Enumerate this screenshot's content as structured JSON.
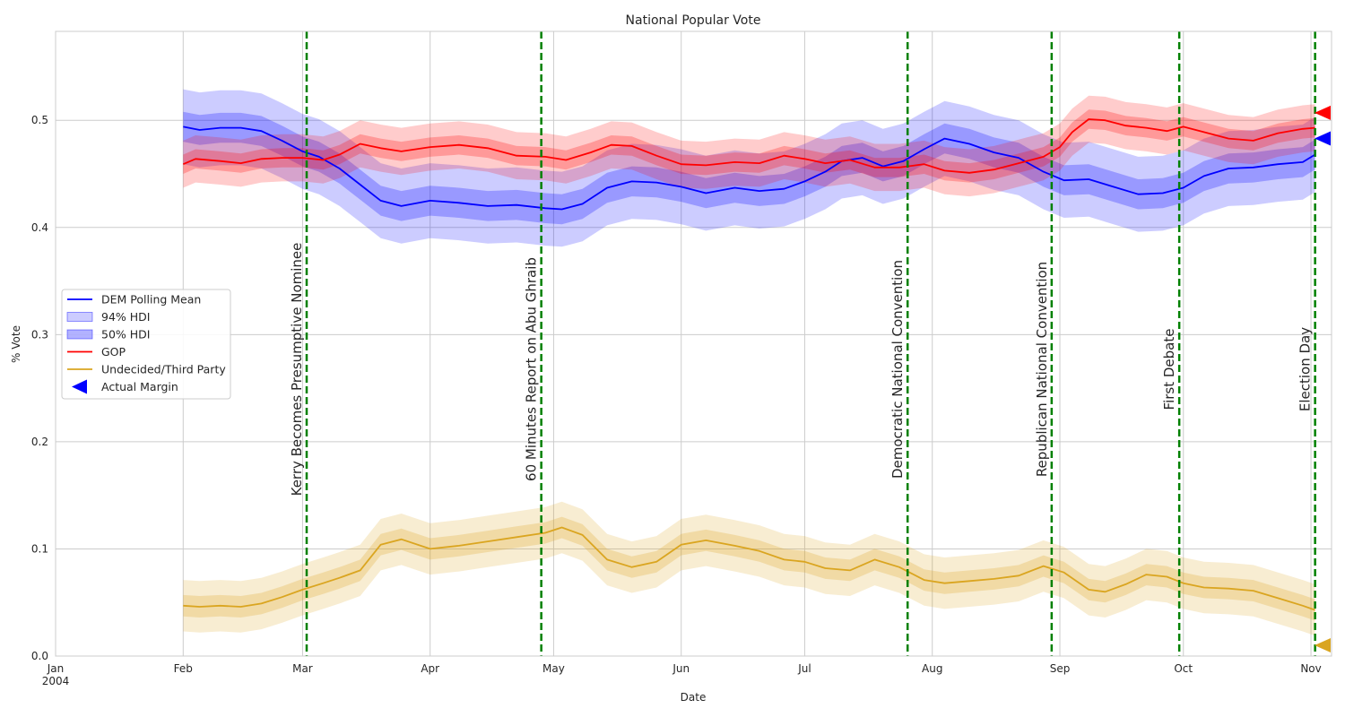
{
  "chart_data": {
    "type": "line",
    "title": "National Popular Vote",
    "xlabel": "Date",
    "ylabel": "% Vote",
    "xlim": [
      "2004-01-01",
      "2004-11-06"
    ],
    "ylim": [
      0,
      0.583
    ],
    "grid": true,
    "legend_position": "left-center",
    "x_ticks": [
      {
        "date": "2004-01-01",
        "label": "Jan",
        "sublabel": "2004"
      },
      {
        "date": "2004-02-01",
        "label": "Feb"
      },
      {
        "date": "2004-03-01",
        "label": "Mar"
      },
      {
        "date": "2004-04-01",
        "label": "Apr"
      },
      {
        "date": "2004-05-01",
        "label": "May"
      },
      {
        "date": "2004-06-01",
        "label": "Jun"
      },
      {
        "date": "2004-07-01",
        "label": "Jul"
      },
      {
        "date": "2004-08-01",
        "label": "Aug"
      },
      {
        "date": "2004-09-01",
        "label": "Sep"
      },
      {
        "date": "2004-10-01",
        "label": "Oct"
      },
      {
        "date": "2004-11-01",
        "label": "Nov"
      }
    ],
    "y_ticks": [
      {
        "value": 0.0,
        "label": "0.0"
      },
      {
        "value": 0.1,
        "label": "0.1"
      },
      {
        "value": 0.2,
        "label": "0.2"
      },
      {
        "value": 0.3,
        "label": "0.3"
      },
      {
        "value": 0.4,
        "label": "0.4"
      },
      {
        "value": 0.5,
        "label": "0.5"
      }
    ],
    "series": [
      {
        "name": "DEM Polling Mean",
        "color": "#0000ff",
        "hdi94_width": 0.035,
        "hdi50_width": 0.014,
        "points": [
          [
            "2004-02-01",
            0.494
          ],
          [
            "2004-02-05",
            0.491
          ],
          [
            "2004-02-10",
            0.493
          ],
          [
            "2004-02-15",
            0.493
          ],
          [
            "2004-02-20",
            0.49
          ],
          [
            "2004-02-25",
            0.481
          ],
          [
            "2004-03-01",
            0.471
          ],
          [
            "2004-03-05",
            0.466
          ],
          [
            "2004-03-10",
            0.455
          ],
          [
            "2004-03-15",
            0.44
          ],
          [
            "2004-03-20",
            0.425
          ],
          [
            "2004-03-25",
            0.42
          ],
          [
            "2004-04-01",
            0.425
          ],
          [
            "2004-04-08",
            0.423
          ],
          [
            "2004-04-15",
            0.42
          ],
          [
            "2004-04-22",
            0.421
          ],
          [
            "2004-04-29",
            0.418
          ],
          [
            "2004-05-03",
            0.417
          ],
          [
            "2004-05-08",
            0.422
          ],
          [
            "2004-05-14",
            0.437
          ],
          [
            "2004-05-20",
            0.443
          ],
          [
            "2004-05-26",
            0.442
          ],
          [
            "2004-06-01",
            0.438
          ],
          [
            "2004-06-07",
            0.432
          ],
          [
            "2004-06-14",
            0.437
          ],
          [
            "2004-06-20",
            0.434
          ],
          [
            "2004-06-26",
            0.436
          ],
          [
            "2004-07-01",
            0.443
          ],
          [
            "2004-07-06",
            0.452
          ],
          [
            "2004-07-10",
            0.462
          ],
          [
            "2004-07-15",
            0.465
          ],
          [
            "2004-07-20",
            0.457
          ],
          [
            "2004-07-25",
            0.462
          ],
          [
            "2004-07-30",
            0.473
          ],
          [
            "2004-08-04",
            0.483
          ],
          [
            "2004-08-10",
            0.478
          ],
          [
            "2004-08-16",
            0.47
          ],
          [
            "2004-08-22",
            0.465
          ],
          [
            "2004-08-28",
            0.452
          ],
          [
            "2004-09-02",
            0.444
          ],
          [
            "2004-09-08",
            0.445
          ],
          [
            "2004-09-14",
            0.438
          ],
          [
            "2004-09-20",
            0.431
          ],
          [
            "2004-09-26",
            0.432
          ],
          [
            "2004-10-01",
            0.437
          ],
          [
            "2004-10-06",
            0.448
          ],
          [
            "2004-10-12",
            0.455
          ],
          [
            "2004-10-18",
            0.456
          ],
          [
            "2004-10-24",
            0.459
          ],
          [
            "2004-10-30",
            0.461
          ],
          [
            "2004-11-02",
            0.468
          ]
        ]
      },
      {
        "name": "GOP",
        "color": "#ff0000",
        "hdi94_width": 0.022,
        "hdi50_width": 0.009,
        "points": [
          [
            "2004-02-01",
            0.459
          ],
          [
            "2004-02-04",
            0.464
          ],
          [
            "2004-02-10",
            0.462
          ],
          [
            "2004-02-15",
            0.46
          ],
          [
            "2004-02-20",
            0.464
          ],
          [
            "2004-02-25",
            0.465
          ],
          [
            "2004-03-01",
            0.465
          ],
          [
            "2004-03-06",
            0.463
          ],
          [
            "2004-03-10",
            0.468
          ],
          [
            "2004-03-15",
            0.478
          ],
          [
            "2004-03-20",
            0.474
          ],
          [
            "2004-03-25",
            0.471
          ],
          [
            "2004-04-01",
            0.475
          ],
          [
            "2004-04-08",
            0.477
          ],
          [
            "2004-04-15",
            0.474
          ],
          [
            "2004-04-22",
            0.467
          ],
          [
            "2004-04-29",
            0.466
          ],
          [
            "2004-05-04",
            0.463
          ],
          [
            "2004-05-10",
            0.47
          ],
          [
            "2004-05-15",
            0.477
          ],
          [
            "2004-05-20",
            0.476
          ],
          [
            "2004-05-26",
            0.467
          ],
          [
            "2004-06-01",
            0.459
          ],
          [
            "2004-06-07",
            0.458
          ],
          [
            "2004-06-14",
            0.461
          ],
          [
            "2004-06-20",
            0.46
          ],
          [
            "2004-06-26",
            0.467
          ],
          [
            "2004-07-01",
            0.464
          ],
          [
            "2004-07-06",
            0.46
          ],
          [
            "2004-07-12",
            0.463
          ],
          [
            "2004-07-18",
            0.456
          ],
          [
            "2004-07-24",
            0.456
          ],
          [
            "2004-07-30",
            0.459
          ],
          [
            "2004-08-04",
            0.453
          ],
          [
            "2004-08-10",
            0.451
          ],
          [
            "2004-08-16",
            0.454
          ],
          [
            "2004-08-22",
            0.46
          ],
          [
            "2004-08-28",
            0.466
          ],
          [
            "2004-09-01",
            0.475
          ],
          [
            "2004-09-04",
            0.489
          ],
          [
            "2004-09-08",
            0.501
          ],
          [
            "2004-09-12",
            0.5
          ],
          [
            "2004-09-17",
            0.495
          ],
          [
            "2004-09-22",
            0.493
          ],
          [
            "2004-09-27",
            0.49
          ],
          [
            "2004-10-01",
            0.494
          ],
          [
            "2004-10-06",
            0.489
          ],
          [
            "2004-10-12",
            0.483
          ],
          [
            "2004-10-18",
            0.481
          ],
          [
            "2004-10-24",
            0.488
          ],
          [
            "2004-10-30",
            0.492
          ],
          [
            "2004-11-02",
            0.493
          ]
        ]
      },
      {
        "name": "Undecided/Third Party",
        "color": "#daa520",
        "hdi94_width": 0.024,
        "hdi50_width": 0.01,
        "points": [
          [
            "2004-02-01",
            0.047
          ],
          [
            "2004-02-05",
            0.046
          ],
          [
            "2004-02-10",
            0.047
          ],
          [
            "2004-02-15",
            0.046
          ],
          [
            "2004-02-20",
            0.049
          ],
          [
            "2004-02-25",
            0.055
          ],
          [
            "2004-03-01",
            0.062
          ],
          [
            "2004-03-06",
            0.068
          ],
          [
            "2004-03-10",
            0.073
          ],
          [
            "2004-03-15",
            0.08
          ],
          [
            "2004-03-20",
            0.104
          ],
          [
            "2004-03-25",
            0.109
          ],
          [
            "2004-04-01",
            0.1
          ],
          [
            "2004-04-08",
            0.103
          ],
          [
            "2004-04-15",
            0.107
          ],
          [
            "2004-04-22",
            0.111
          ],
          [
            "2004-04-29",
            0.115
          ],
          [
            "2004-05-03",
            0.12
          ],
          [
            "2004-05-08",
            0.113
          ],
          [
            "2004-05-14",
            0.09
          ],
          [
            "2004-05-20",
            0.083
          ],
          [
            "2004-05-26",
            0.088
          ],
          [
            "2004-06-01",
            0.104
          ],
          [
            "2004-06-07",
            0.108
          ],
          [
            "2004-06-14",
            0.103
          ],
          [
            "2004-06-20",
            0.098
          ],
          [
            "2004-06-26",
            0.09
          ],
          [
            "2004-07-01",
            0.088
          ],
          [
            "2004-07-06",
            0.082
          ],
          [
            "2004-07-12",
            0.08
          ],
          [
            "2004-07-18",
            0.09
          ],
          [
            "2004-07-24",
            0.083
          ],
          [
            "2004-07-30",
            0.071
          ],
          [
            "2004-08-04",
            0.068
          ],
          [
            "2004-08-10",
            0.07
          ],
          [
            "2004-08-16",
            0.072
          ],
          [
            "2004-08-22",
            0.075
          ],
          [
            "2004-08-28",
            0.084
          ],
          [
            "2004-09-02",
            0.078
          ],
          [
            "2004-09-08",
            0.062
          ],
          [
            "2004-09-12",
            0.06
          ],
          [
            "2004-09-17",
            0.067
          ],
          [
            "2004-09-22",
            0.076
          ],
          [
            "2004-09-27",
            0.074
          ],
          [
            "2004-10-01",
            0.068
          ],
          [
            "2004-10-06",
            0.064
          ],
          [
            "2004-10-12",
            0.063
          ],
          [
            "2004-10-18",
            0.061
          ],
          [
            "2004-10-24",
            0.054
          ],
          [
            "2004-10-30",
            0.047
          ],
          [
            "2004-11-02",
            0.043
          ]
        ]
      }
    ],
    "events": [
      {
        "date": "2004-03-02",
        "label": "Kerry Becomes Presumptive Nominee"
      },
      {
        "date": "2004-04-28",
        "label": "60 Minutes Report on Abu Ghraib"
      },
      {
        "date": "2004-07-26",
        "label": "Democratic National Convention"
      },
      {
        "date": "2004-08-30",
        "label": "Republican National Convention"
      },
      {
        "date": "2004-09-30",
        "label": "First Debate"
      },
      {
        "date": "2004-11-02",
        "label": "Election Day"
      }
    ],
    "event_color": "#008000",
    "actual_results": [
      {
        "party": "GOP",
        "value": 0.507,
        "color": "#ff0000"
      },
      {
        "party": "DEM",
        "value": 0.483,
        "color": "#0000ff"
      },
      {
        "party": "Undecided/Third Party",
        "value": 0.01,
        "color": "#daa520"
      }
    ],
    "legend": [
      {
        "label": "DEM Polling Mean",
        "kind": "line",
        "color": "#0000ff"
      },
      {
        "label": "94% HDI",
        "kind": "patch",
        "color": "#0000ff",
        "opacity": 0.2
      },
      {
        "label": "50% HDI",
        "kind": "patch",
        "color": "#0000ff",
        "opacity": 0.3
      },
      {
        "label": "GOP",
        "kind": "line",
        "color": "#ff0000"
      },
      {
        "label": "Undecided/Third Party",
        "kind": "line",
        "color": "#daa520"
      },
      {
        "label": "Actual Margin",
        "kind": "marker",
        "color": "#0000ff"
      }
    ]
  }
}
